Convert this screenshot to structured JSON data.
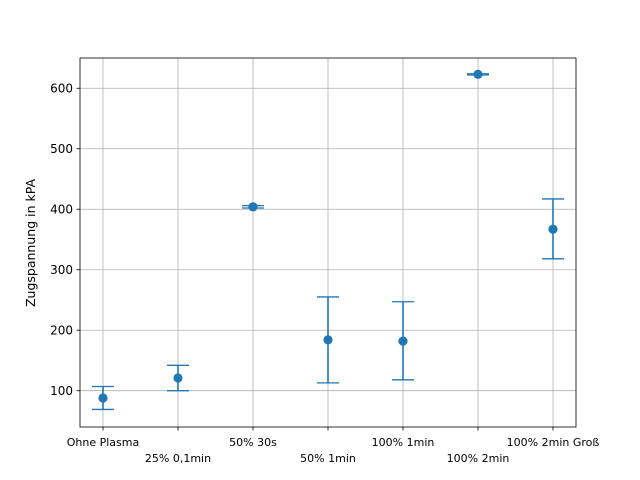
{
  "chart_data": {
    "type": "scatter",
    "subtype": "errorbar",
    "title": "",
    "xlabel": "",
    "ylabel": "Zugspannung in kPA",
    "categories": [
      "Ohne Plasma",
      "25% 0,1min",
      "50% 30s",
      "50% 1min",
      "100% 1min",
      "100% 2min",
      "100% 2min Groß"
    ],
    "values": [
      88,
      121,
      404,
      184,
      182,
      623,
      367
    ],
    "error_low": [
      69,
      100,
      402,
      113,
      118,
      622,
      318
    ],
    "error_high": [
      107,
      142,
      406,
      255,
      247,
      624,
      417
    ],
    "ylim": [
      40,
      650
    ],
    "yticks": [
      100,
      200,
      300,
      400,
      500,
      600
    ],
    "grid": true,
    "color": "#1f77b4"
  }
}
